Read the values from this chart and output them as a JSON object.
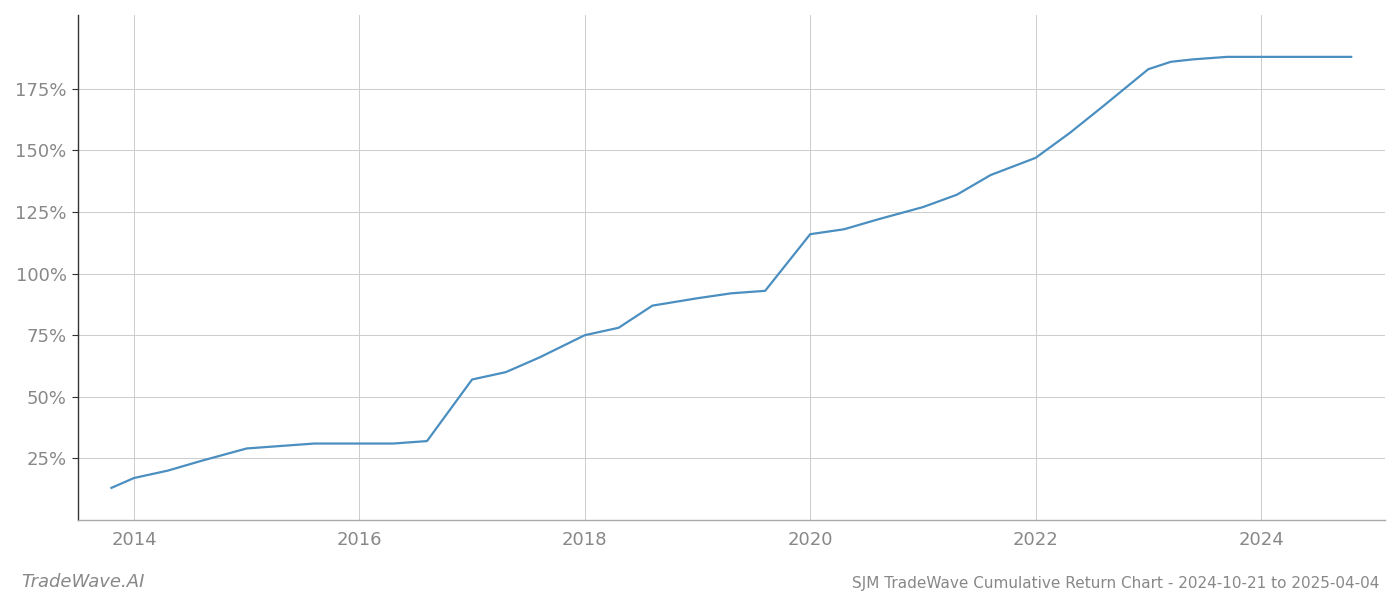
{
  "title": "SJM TradeWave Cumulative Return Chart - 2024-10-21 to 2025-04-04",
  "watermark": "TradeWave.AI",
  "line_color": "#4a8fc0",
  "background_color": "#ffffff",
  "grid_color": "#cccccc",
  "x_years": [
    2013.8,
    2014.0,
    2014.3,
    2014.6,
    2015.0,
    2015.3,
    2015.6,
    2016.0,
    2016.3,
    2016.6,
    2017.0,
    2017.3,
    2017.6,
    2018.0,
    2018.3,
    2018.6,
    2019.0,
    2019.3,
    2019.6,
    2020.0,
    2020.3,
    2020.6,
    2021.0,
    2021.3,
    2021.6,
    2022.0,
    2022.3,
    2022.6,
    2023.0,
    2023.2,
    2023.4,
    2023.7,
    2024.0,
    2024.3,
    2024.8
  ],
  "y_values": [
    13,
    17,
    20,
    24,
    29,
    30,
    31,
    31,
    31,
    32,
    57,
    60,
    66,
    75,
    78,
    87,
    90,
    92,
    93,
    116,
    118,
    122,
    127,
    132,
    140,
    147,
    157,
    168,
    183,
    186,
    187,
    188,
    188,
    188,
    188
  ],
  "xlim": [
    2013.5,
    2025.1
  ],
  "ylim": [
    0,
    205
  ],
  "yticks": [
    25,
    50,
    75,
    100,
    125,
    150,
    175
  ],
  "xticks": [
    2014,
    2016,
    2018,
    2020,
    2022,
    2024
  ],
  "tick_label_color": "#888888",
  "tick_fontsize": 13,
  "title_fontsize": 11,
  "watermark_fontsize": 13,
  "line_width": 1.6,
  "spine_color": "#333333"
}
